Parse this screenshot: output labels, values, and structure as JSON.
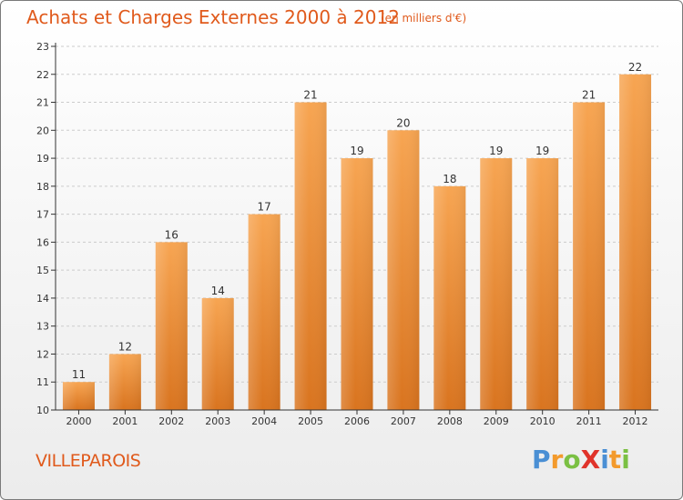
{
  "title": "Achats et Charges Externes 2000 à 2012",
  "subtitle": "(en milliers d'€)",
  "commune": "VILLEPAROIS",
  "logo": {
    "text": "ProXiti",
    "letters": [
      {
        "ch": "P",
        "color": "#4a8fd4"
      },
      {
        "ch": "r",
        "color": "#f39a2c"
      },
      {
        "ch": "o",
        "color": "#7bc043"
      },
      {
        "ch": "X",
        "color": "#e0332a"
      },
      {
        "ch": "i",
        "color": "#4a8fd4"
      },
      {
        "ch": "t",
        "color": "#f39a2c"
      },
      {
        "ch": "i",
        "color": "#7bc043"
      }
    ]
  },
  "colors": {
    "bar_top": "#f7a552",
    "bar_bottom": "#d9741f",
    "text_accent": "#e05a1c",
    "axis": "#333333",
    "grid": "#cccccc"
  },
  "chart_data": {
    "type": "bar",
    "categories": [
      "2000",
      "2001",
      "2002",
      "2003",
      "2004",
      "2005",
      "2006",
      "2007",
      "2008",
      "2009",
      "2010",
      "2011",
      "2012"
    ],
    "values": [
      11,
      12,
      16,
      14,
      17,
      21,
      19,
      20,
      18,
      19,
      19,
      21,
      22
    ],
    "data_labels": [
      "11",
      "12",
      "16",
      "14",
      "17",
      "21",
      "19",
      "20",
      "18",
      "19",
      "19",
      "21",
      "22"
    ],
    "yticks": [
      "10",
      "11",
      "12",
      "13",
      "14",
      "15",
      "16",
      "17",
      "18",
      "19",
      "20",
      "21",
      "22",
      "23"
    ],
    "ylim": [
      10,
      23
    ],
    "grid": true,
    "legend": "none"
  }
}
